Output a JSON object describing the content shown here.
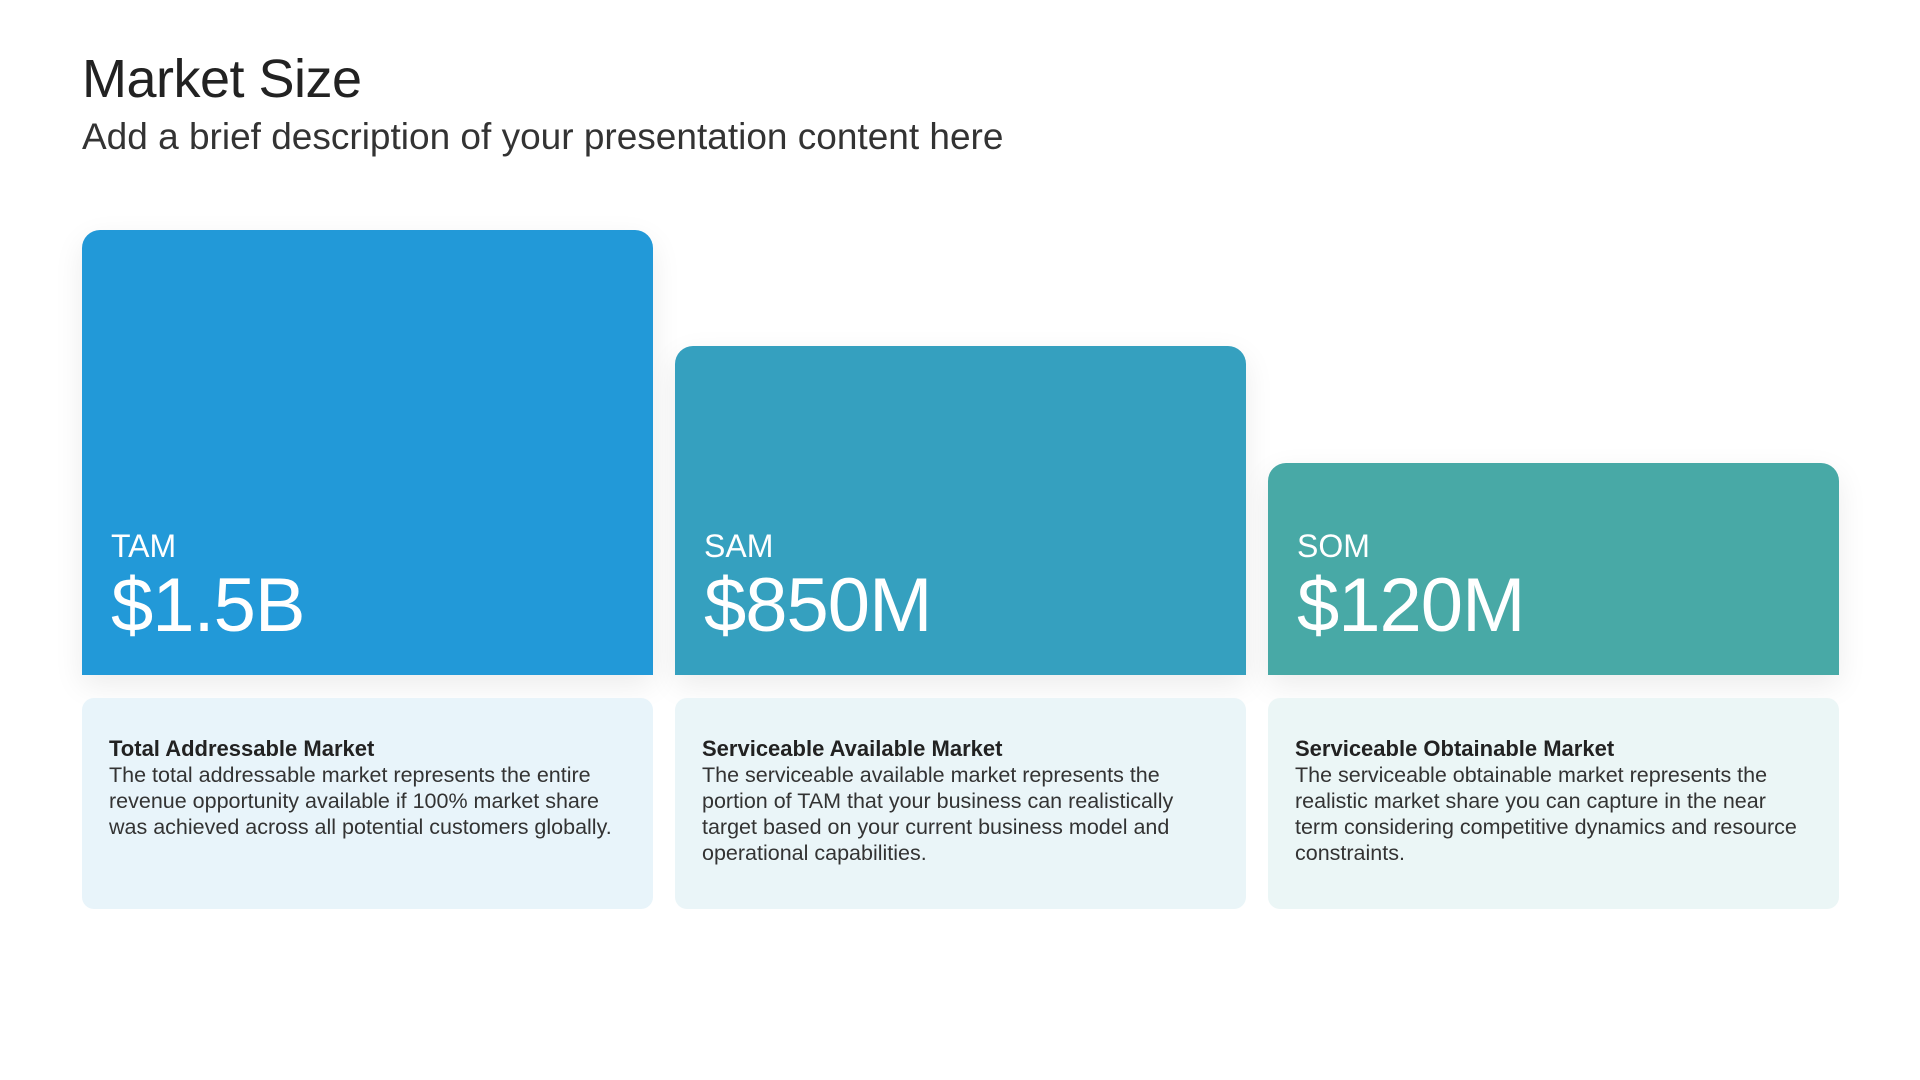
{
  "header": {
    "title": "Market Size",
    "subtitle": "Add a brief description of your presentation content here"
  },
  "markets": [
    {
      "label": "TAM",
      "value": "$1.5B",
      "color": "#2299D8",
      "desc_bg": "#E8F4FA",
      "desc_title": "Total Addressable Market",
      "desc_body": "The total addressable market represents the entire revenue opportunity available if 100% market share was achieved across all potential customers globally."
    },
    {
      "label": "SAM",
      "value": "$850M",
      "color": "#35A0BF",
      "desc_bg": "#EAF5F8",
      "desc_title": "Serviceable Available Market",
      "desc_body": "The serviceable available market represents the portion of TAM that your business can realistically target based on your current business model and operational capabilities."
    },
    {
      "label": "SOM",
      "value": "$120M",
      "color": "#48A9A6",
      "desc_bg": "#EBF6F6",
      "desc_title": "Serviceable Obtainable Market",
      "desc_body": "The serviceable obtainable market represents the realistic market share you can capture in the near term considering competitive dynamics and resource constraints."
    }
  ]
}
